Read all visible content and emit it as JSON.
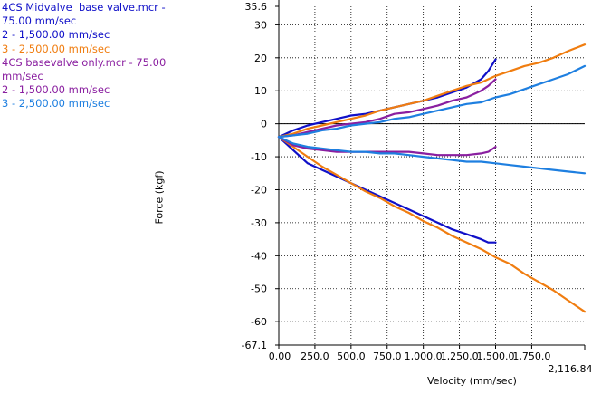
{
  "chart_data": {
    "type": "line",
    "xlabel": "Velocity (mm/sec)",
    "ylabel": "Force (kgf)",
    "xlim": [
      0,
      2116.84
    ],
    "ylim": [
      -67.1,
      35.6
    ],
    "x_ticks": [
      0,
      250,
      500,
      750,
      1000,
      1250,
      1500,
      1750,
      2116.84
    ],
    "x_tick_labels": [
      "0.00",
      "250.0",
      "500.0",
      "750.0",
      "1,000.0",
      "1,250.0",
      "1,500.0",
      "1,750.0",
      "2,116.84"
    ],
    "y_ticks": [
      35.6,
      30,
      20,
      10,
      0,
      -10,
      -20,
      -30,
      -40,
      -50,
      -60,
      -67.1
    ],
    "y_tick_labels": [
      "35.6",
      "30",
      "20",
      "10",
      "0",
      "-10",
      "-20",
      "-30",
      "-40",
      "-50",
      "-60",
      "-67.1"
    ],
    "grid": true,
    "legend_placement": "top-left, outside plot",
    "legend": [
      {
        "text": "4CS Midvalve  base valve.mcr - 75.00 mm/sec",
        "color": "#1010c8"
      },
      {
        "text": "2 - 1,500.00 mm/sec",
        "color": "#1010c8"
      },
      {
        "text": "3 - 2,500.00 mm/sec",
        "color": "#f07d10"
      },
      {
        "text": "4CS basevalve only.mcr - 75.00 mm/sec",
        "color": "#8a1fa0"
      },
      {
        "text": "2 - 1,500.00 mm/sec",
        "color": "#8a1fa0"
      },
      {
        "text": "3 - 2,500.00 mm/sec",
        "color": "#1e7fe0"
      }
    ],
    "series": [
      {
        "color": "#1010c8",
        "x": [
          0,
          100,
          200,
          300,
          400,
          500,
          600,
          700,
          800,
          900,
          1000,
          1100,
          1200,
          1300,
          1400,
          1450,
          1500
        ],
        "y": [
          -4,
          -2,
          -0.5,
          0.5,
          1.5,
          2.5,
          3,
          4,
          5,
          6,
          7,
          8,
          9.5,
          11,
          13.5,
          16,
          19.5
        ]
      },
      {
        "color": "#1010c8",
        "x": [
          0,
          100,
          200,
          300,
          400,
          500,
          600,
          700,
          800,
          900,
          1000,
          1100,
          1200,
          1300,
          1400,
          1450,
          1500
        ],
        "y": [
          -4,
          -8,
          -12,
          -14,
          -16,
          -18,
          -20,
          -22,
          -24,
          -26,
          -28,
          -30,
          -32,
          -33.5,
          -35,
          -36,
          -36
        ]
      },
      {
        "color": "#f07d10",
        "x": [
          0,
          100,
          200,
          300,
          400,
          500,
          600,
          700,
          800,
          900,
          1000,
          1100,
          1200,
          1300,
          1400,
          1500,
          1600,
          1700,
          1800,
          1900,
          2000,
          2116.84
        ],
        "y": [
          -4,
          -3,
          -1.5,
          -0.5,
          0.5,
          1.5,
          2.5,
          4,
          5,
          6,
          7,
          8.5,
          10,
          11.5,
          12.5,
          14.5,
          16,
          17.5,
          18.5,
          20,
          22,
          24
        ]
      },
      {
        "color": "#f07d10",
        "x": [
          0,
          100,
          200,
          300,
          400,
          500,
          600,
          700,
          800,
          900,
          1000,
          1100,
          1200,
          1300,
          1400,
          1500,
          1600,
          1700,
          1800,
          1900,
          2000,
          2050,
          2116.84
        ],
        "y": [
          -4,
          -7,
          -10,
          -13,
          -15.5,
          -18,
          -20.5,
          -22.5,
          -25,
          -27,
          -29.5,
          -31.5,
          -34,
          -36,
          -38,
          -40.5,
          -42.5,
          -45.5,
          -48,
          -50.5,
          -53.5,
          -55,
          -57
        ]
      },
      {
        "color": "#8a1fa0",
        "x": [
          0,
          100,
          200,
          300,
          400,
          500,
          600,
          700,
          800,
          900,
          1000,
          1100,
          1200,
          1300,
          1400,
          1450,
          1500
        ],
        "y": [
          -4,
          -3.5,
          -2.5,
          -1.5,
          -0.5,
          0,
          0.5,
          1.5,
          3,
          3.5,
          4.5,
          5.5,
          7,
          8,
          10,
          11.5,
          13.5
        ]
      },
      {
        "color": "#8a1fa0",
        "x": [
          0,
          100,
          200,
          300,
          400,
          500,
          600,
          700,
          800,
          900,
          1000,
          1100,
          1200,
          1300,
          1400,
          1450,
          1500
        ],
        "y": [
          -4,
          -6.5,
          -7.5,
          -8,
          -8.5,
          -8.5,
          -8.5,
          -8.5,
          -8.5,
          -8.5,
          -9,
          -9.5,
          -9.5,
          -9.5,
          -9,
          -8.5,
          -7
        ]
      },
      {
        "color": "#1e7fe0",
        "x": [
          0,
          100,
          200,
          300,
          400,
          500,
          600,
          700,
          800,
          900,
          1000,
          1100,
          1200,
          1300,
          1400,
          1500,
          1600,
          1700,
          1800,
          1900,
          2000,
          2116.84
        ],
        "y": [
          -4,
          -3.5,
          -3,
          -2,
          -1.5,
          -0.5,
          0,
          0.5,
          1.5,
          2,
          3,
          4,
          5,
          6,
          6.5,
          8,
          9,
          10.5,
          12,
          13.5,
          15,
          17.5
        ]
      },
      {
        "color": "#1e7fe0",
        "x": [
          0,
          100,
          200,
          300,
          400,
          500,
          600,
          700,
          800,
          900,
          1000,
          1100,
          1200,
          1300,
          1400,
          1500,
          1600,
          1700,
          1800,
          1900,
          2000,
          2116.84
        ],
        "y": [
          -4,
          -6,
          -7,
          -7.5,
          -8,
          -8.5,
          -8.5,
          -9,
          -9,
          -9.5,
          -10,
          -10.5,
          -11,
          -11.5,
          -11.5,
          -12,
          -12.5,
          -13,
          -13.5,
          -14,
          -14.5,
          -15
        ]
      }
    ]
  }
}
